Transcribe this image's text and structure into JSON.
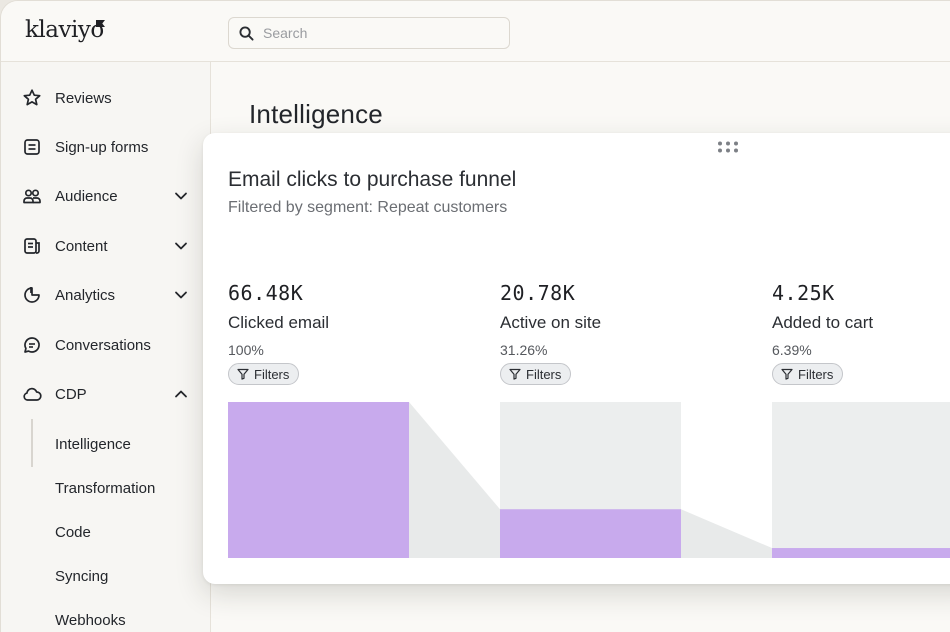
{
  "app": {
    "logo": "klaviyo"
  },
  "search": {
    "placeholder": "Search",
    "value": ""
  },
  "sidebar": {
    "items": [
      {
        "label": "Reviews",
        "icon": "star-icon"
      },
      {
        "label": "Sign-up forms",
        "icon": "form-icon"
      },
      {
        "label": "Audience",
        "icon": "audience-icon",
        "expandable": true
      },
      {
        "label": "Content",
        "icon": "content-icon",
        "expandable": true
      },
      {
        "label": "Analytics",
        "icon": "analytics-icon",
        "expandable": true
      },
      {
        "label": "Conversations",
        "icon": "chat-icon"
      },
      {
        "label": "CDP",
        "icon": "cloud-icon",
        "expanded": true
      }
    ],
    "sub_items": [
      "Intelligence",
      "Transformation",
      "Code",
      "Syncing",
      "Webhooks"
    ],
    "active_sub_item": "Intelligence"
  },
  "page": {
    "title": "Intelligence"
  },
  "card": {
    "title": "Email clicks to purchase funnel",
    "subtitle": "Filtered by segment: Repeat customers",
    "filter_label": "Filters"
  },
  "chart_data": {
    "type": "bar",
    "categories": [
      "Clicked email",
      "Active on site",
      "Added to cart"
    ],
    "values": [
      66480,
      20780,
      4250
    ],
    "value_labels": [
      "66.48K",
      "20.78K",
      "4.25K"
    ],
    "percent_labels": [
      "100%",
      "31.26%",
      "6.39%"
    ],
    "percent_values": [
      100,
      31.26,
      6.39
    ],
    "ylim": [
      0,
      100
    ],
    "colors": {
      "bar": "#c8aaed",
      "track": "#eceeee",
      "connector": "#e8eaea"
    }
  }
}
